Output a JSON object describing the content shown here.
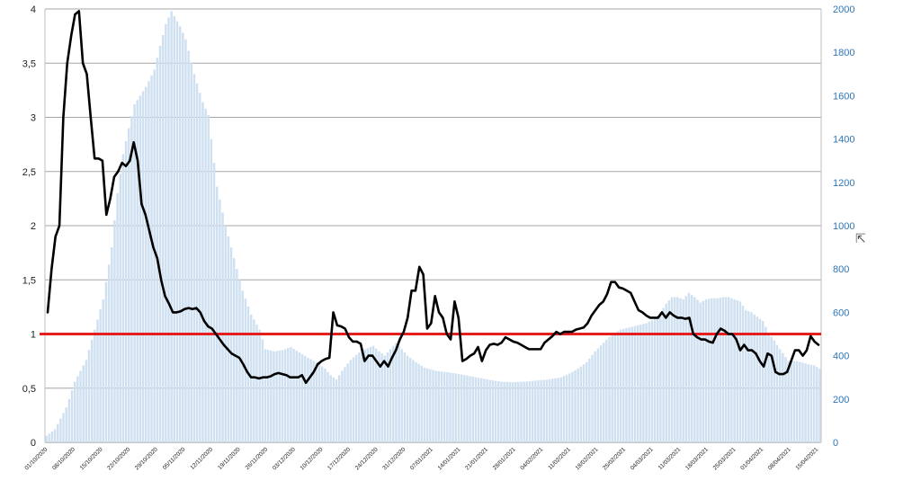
{
  "chart_data": {
    "type": "bar+line",
    "title": "",
    "xlabel": "",
    "ylabel_left": "",
    "ylabel_right": "",
    "left_axis": {
      "min": 0,
      "max": 4,
      "ticks": [
        "0",
        "0,5",
        "1",
        "1,5",
        "2",
        "2,5",
        "3",
        "3,5",
        "4"
      ]
    },
    "right_axis": {
      "min": 0,
      "max": 2000,
      "ticks": [
        "0",
        "200",
        "400",
        "600",
        "800",
        "1000",
        "1200",
        "1400",
        "1600",
        "1800",
        "2000"
      ]
    },
    "x_labels": [
      "01/10/2020",
      "08/10/2020",
      "15/10/2020",
      "22/10/2020",
      "29/10/2020",
      "05/11/2020",
      "12/11/2020",
      "19/11/2020",
      "26/11/2020",
      "03/12/2020",
      "10/12/2020",
      "17/12/2020",
      "24/12/2020",
      "31/12/2020",
      "07/01/2021",
      "14/01/2021",
      "21/01/2021",
      "28/01/2021",
      "04/02/2021",
      "11/02/2021",
      "18/02/2021",
      "25/02/2021",
      "04/03/2021",
      "11/03/2021",
      "18/03/2021",
      "25/03/2021",
      "01/04/2021",
      "08/04/2021",
      "15/04/2021"
    ],
    "reference_line": {
      "value": 1,
      "axis": "left",
      "color": "#e51e1e"
    },
    "bar_series": {
      "axis": "right",
      "color": "#cfe0f1",
      "anchors": [
        [
          0,
          30
        ],
        [
          3,
          60
        ],
        [
          5,
          110
        ],
        [
          7,
          160
        ],
        [
          10,
          280
        ],
        [
          14,
          380
        ],
        [
          17,
          520
        ],
        [
          20,
          660
        ],
        [
          23,
          900
        ],
        [
          25,
          1150
        ],
        [
          27,
          1330
        ],
        [
          29,
          1450
        ],
        [
          31,
          1560
        ],
        [
          35,
          1640
        ],
        [
          38,
          1720
        ],
        [
          40,
          1830
        ],
        [
          42,
          1930
        ],
        [
          44,
          1990
        ],
        [
          47,
          1920
        ],
        [
          49,
          1860
        ],
        [
          52,
          1700
        ],
        [
          55,
          1570
        ],
        [
          57,
          1510
        ],
        [
          60,
          1180
        ],
        [
          63,
          1000
        ],
        [
          66,
          850
        ],
        [
          69,
          700
        ],
        [
          72,
          590
        ],
        [
          75,
          520
        ],
        [
          77,
          430
        ],
        [
          80,
          420
        ],
        [
          83,
          425
        ],
        [
          86,
          440
        ],
        [
          89,
          415
        ],
        [
          92,
          390
        ],
        [
          95,
          370
        ],
        [
          98,
          340
        ],
        [
          100,
          310
        ],
        [
          102,
          290
        ],
        [
          104,
          330
        ],
        [
          107,
          380
        ],
        [
          110,
          415
        ],
        [
          112,
          430
        ],
        [
          115,
          445
        ],
        [
          117,
          420
        ],
        [
          119,
          400
        ],
        [
          121,
          430
        ],
        [
          123,
          460
        ],
        [
          125,
          430
        ],
        [
          127,
          400
        ],
        [
          130,
          370
        ],
        [
          133,
          345
        ],
        [
          137,
          330
        ],
        [
          140,
          325
        ],
        [
          144,
          318
        ],
        [
          148,
          308
        ],
        [
          152,
          298
        ],
        [
          156,
          288
        ],
        [
          160,
          280
        ],
        [
          164,
          278
        ],
        [
          168,
          280
        ],
        [
          172,
          285
        ],
        [
          175,
          288
        ],
        [
          178,
          293
        ],
        [
          181,
          300
        ],
        [
          184,
          318
        ],
        [
          187,
          340
        ],
        [
          190,
          370
        ],
        [
          193,
          420
        ],
        [
          196,
          460
        ],
        [
          199,
          500
        ],
        [
          202,
          520
        ],
        [
          205,
          530
        ],
        [
          208,
          540
        ],
        [
          211,
          550
        ],
        [
          214,
          570
        ],
        [
          216,
          600
        ],
        [
          218,
          640
        ],
        [
          220,
          670
        ],
        [
          222,
          670
        ],
        [
          224,
          660
        ],
        [
          226,
          690
        ],
        [
          228,
          670
        ],
        [
          230,
          645
        ],
        [
          232,
          660
        ],
        [
          234,
          665
        ],
        [
          236,
          665
        ],
        [
          238,
          670
        ],
        [
          240,
          670
        ],
        [
          242,
          660
        ],
        [
          244,
          650
        ],
        [
          246,
          610
        ],
        [
          248,
          600
        ],
        [
          250,
          580
        ],
        [
          252,
          560
        ],
        [
          254,
          505
        ],
        [
          256,
          470
        ],
        [
          258,
          430
        ],
        [
          261,
          375
        ],
        [
          264,
          375
        ],
        [
          266,
          368
        ],
        [
          268,
          360
        ],
        [
          270,
          355
        ],
        [
          272,
          340
        ]
      ]
    },
    "line_series": {
      "axis": "left",
      "color": "#000000",
      "anchors": [
        [
          0,
          1.2
        ],
        [
          1,
          1.6
        ],
        [
          2,
          1.9
        ],
        [
          3,
          2
        ],
        [
          4,
          3
        ],
        [
          5,
          3.5
        ],
        [
          6,
          3.75
        ],
        [
          7,
          3.95
        ],
        [
          8,
          3.98
        ],
        [
          9,
          3.5
        ],
        [
          10,
          3.4
        ],
        [
          11,
          3
        ],
        [
          12,
          2.62
        ],
        [
          13,
          2.62
        ],
        [
          14,
          2.6
        ],
        [
          15,
          2.1
        ],
        [
          16,
          2.25
        ],
        [
          17,
          2.45
        ],
        [
          18,
          2.5
        ],
        [
          19,
          2.58
        ],
        [
          20,
          2.55
        ],
        [
          21,
          2.6
        ],
        [
          22,
          2.77
        ],
        [
          23,
          2.6
        ],
        [
          24,
          2.2
        ],
        [
          25,
          2.1
        ],
        [
          26,
          1.95
        ],
        [
          27,
          1.8
        ],
        [
          28,
          1.7
        ],
        [
          29,
          1.5
        ],
        [
          30,
          1.35
        ],
        [
          31,
          1.28
        ],
        [
          32,
          1.2
        ],
        [
          33,
          1.2
        ],
        [
          34,
          1.21
        ],
        [
          35,
          1.23
        ],
        [
          36,
          1.24
        ],
        [
          37,
          1.23
        ],
        [
          38,
          1.24
        ],
        [
          39,
          1.2
        ],
        [
          40,
          1.12
        ],
        [
          41,
          1.07
        ],
        [
          42,
          1.05
        ],
        [
          43,
          1
        ],
        [
          44,
          0.95
        ],
        [
          45,
          0.9
        ],
        [
          46,
          0.86
        ],
        [
          47,
          0.82
        ],
        [
          48,
          0.8
        ],
        [
          49,
          0.78
        ],
        [
          50,
          0.72
        ],
        [
          51,
          0.65
        ],
        [
          52,
          0.6
        ],
        [
          53,
          0.6
        ],
        [
          54,
          0.59
        ],
        [
          55,
          0.6
        ],
        [
          56,
          0.6
        ],
        [
          57,
          0.61
        ],
        [
          58,
          0.63
        ],
        [
          59,
          0.64
        ],
        [
          60,
          0.63
        ],
        [
          61,
          0.62
        ],
        [
          62,
          0.6
        ],
        [
          63,
          0.6
        ],
        [
          64,
          0.6
        ],
        [
          65,
          0.62
        ],
        [
          66,
          0.55
        ],
        [
          67,
          0.6
        ],
        [
          68,
          0.65
        ],
        [
          69,
          0.72
        ],
        [
          70,
          0.75
        ],
        [
          71,
          0.77
        ],
        [
          72,
          0.78
        ],
        [
          73,
          1.2
        ],
        [
          74,
          1.08
        ],
        [
          75,
          1.07
        ],
        [
          76,
          1.05
        ],
        [
          77,
          0.97
        ],
        [
          78,
          0.93
        ],
        [
          79,
          0.93
        ],
        [
          80,
          0.91
        ],
        [
          81,
          0.75
        ],
        [
          82,
          0.8
        ],
        [
          83,
          0.8
        ],
        [
          84,
          0.75
        ],
        [
          85,
          0.7
        ],
        [
          86,
          0.75
        ],
        [
          87,
          0.7
        ],
        [
          88,
          0.78
        ],
        [
          89,
          0.85
        ],
        [
          90,
          0.95
        ],
        [
          91,
          1.02
        ],
        [
          92,
          1.15
        ],
        [
          93,
          1.4
        ],
        [
          94,
          1.4
        ],
        [
          95,
          1.62
        ],
        [
          96,
          1.55
        ],
        [
          97,
          1.05
        ],
        [
          98,
          1.1
        ],
        [
          99,
          1.35
        ],
        [
          100,
          1.2
        ],
        [
          101,
          1.15
        ],
        [
          102,
          1.0
        ],
        [
          103,
          0.95
        ],
        [
          104,
          1.3
        ],
        [
          105,
          1.15
        ],
        [
          106,
          0.75
        ],
        [
          107,
          0.77
        ],
        [
          108,
          0.8
        ],
        [
          109,
          0.82
        ],
        [
          110,
          0.88
        ],
        [
          111,
          0.75
        ],
        [
          112,
          0.85
        ],
        [
          113,
          0.9
        ],
        [
          114,
          0.91
        ],
        [
          115,
          0.9
        ],
        [
          116,
          0.92
        ],
        [
          117,
          0.97
        ],
        [
          118,
          0.95
        ],
        [
          119,
          0.93
        ],
        [
          120,
          0.92
        ],
        [
          121,
          0.9
        ],
        [
          122,
          0.88
        ],
        [
          123,
          0.86
        ],
        [
          124,
          0.86
        ],
        [
          125,
          0.86
        ],
        [
          126,
          0.86
        ],
        [
          127,
          0.92
        ],
        [
          128,
          0.95
        ],
        [
          129,
          0.98
        ],
        [
          130,
          1.02
        ],
        [
          131,
          1.0
        ],
        [
          132,
          1.02
        ],
        [
          133,
          1.02
        ],
        [
          134,
          1.02
        ],
        [
          135,
          1.04
        ],
        [
          136,
          1.05
        ],
        [
          137,
          1.06
        ],
        [
          138,
          1.1
        ],
        [
          139,
          1.17
        ],
        [
          140,
          1.22
        ],
        [
          141,
          1.27
        ],
        [
          142,
          1.3
        ],
        [
          143,
          1.37
        ],
        [
          144,
          1.48
        ],
        [
          145,
          1.48
        ],
        [
          146,
          1.43
        ],
        [
          147,
          1.42
        ],
        [
          148,
          1.4
        ],
        [
          149,
          1.38
        ],
        [
          150,
          1.3
        ],
        [
          151,
          1.22
        ],
        [
          152,
          1.2
        ],
        [
          153,
          1.17
        ],
        [
          154,
          1.15
        ],
        [
          155,
          1.15
        ],
        [
          156,
          1.15
        ],
        [
          157,
          1.2
        ],
        [
          158,
          1.15
        ],
        [
          159,
          1.2
        ],
        [
          160,
          1.17
        ],
        [
          161,
          1.15
        ],
        [
          162,
          1.15
        ],
        [
          163,
          1.14
        ],
        [
          164,
          1.15
        ],
        [
          165,
          1.0
        ],
        [
          166,
          0.97
        ],
        [
          167,
          0.95
        ],
        [
          168,
          0.95
        ],
        [
          169,
          0.93
        ],
        [
          170,
          0.92
        ],
        [
          171,
          1.0
        ],
        [
          172,
          1.05
        ],
        [
          173,
          1.03
        ],
        [
          174,
          1.0
        ],
        [
          175,
          1.0
        ],
        [
          176,
          0.95
        ],
        [
          177,
          0.85
        ],
        [
          178,
          0.9
        ],
        [
          179,
          0.85
        ],
        [
          180,
          0.85
        ],
        [
          181,
          0.82
        ],
        [
          182,
          0.75
        ],
        [
          183,
          0.7
        ],
        [
          184,
          0.82
        ],
        [
          185,
          0.8
        ],
        [
          186,
          0.65
        ],
        [
          187,
          0.63
        ],
        [
          188,
          0.63
        ],
        [
          189,
          0.65
        ],
        [
          190,
          0.75
        ],
        [
          191,
          0.85
        ],
        [
          192,
          0.85
        ],
        [
          193,
          0.8
        ],
        [
          194,
          0.85
        ],
        [
          195,
          0.98
        ],
        [
          196,
          0.93
        ],
        [
          197,
          0.9
        ]
      ]
    },
    "grid": true,
    "legend": "none"
  },
  "ui": {
    "pointer_glyph": "⇱"
  }
}
